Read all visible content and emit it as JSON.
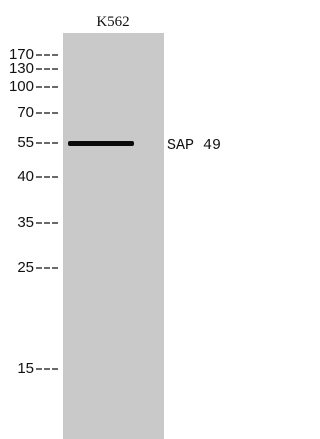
{
  "lane_label": "K562",
  "markers": [
    "170",
    "130",
    "100",
    "70",
    "55",
    "40",
    "35",
    "25",
    "15"
  ],
  "band_label": "SAP 49"
}
